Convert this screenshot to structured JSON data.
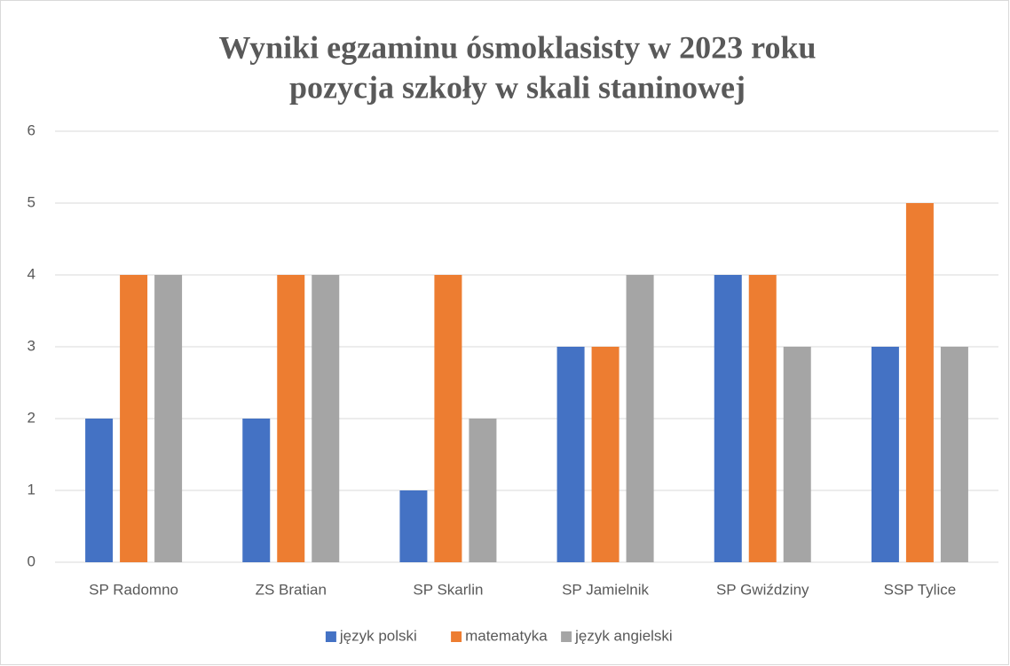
{
  "chart_data": {
    "type": "bar",
    "title": [
      "Wyniki egzaminu ósmoklasisty  w 2023 roku",
      "pozycja szkoły w skali staninowej"
    ],
    "categories": [
      "SP Radomno",
      "ZS Bratian",
      "SP Skarlin",
      "SP Jamielnik",
      "SP Gwiździny",
      "SSP Tylice"
    ],
    "series": [
      {
        "name": "język polski",
        "color": "#4472c4",
        "values": [
          2,
          2,
          1,
          3,
          4,
          3
        ]
      },
      {
        "name": "matematyka",
        "color": "#ed7d31",
        "values": [
          4,
          4,
          4,
          3,
          4,
          5
        ]
      },
      {
        "name": "język angielski",
        "color": "#a5a5a5",
        "values": [
          4,
          4,
          2,
          4,
          3,
          3
        ]
      }
    ],
    "ylim": [
      0,
      6
    ],
    "yticks": [
      0,
      1,
      2,
      3,
      4,
      5,
      6
    ],
    "grid": true,
    "legend": "bottom"
  }
}
